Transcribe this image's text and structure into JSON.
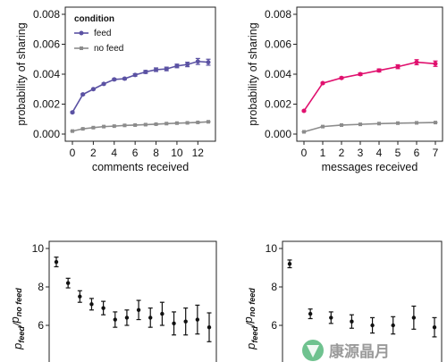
{
  "chart_data": [
    {
      "type": "line",
      "x": [
        0,
        1,
        2,
        3,
        4,
        5,
        6,
        7,
        8,
        9,
        10,
        11,
        12,
        13
      ],
      "xlim": [
        0,
        13
      ],
      "xticks": [
        "0",
        "2",
        "4",
        "6",
        "8",
        "10",
        "12"
      ],
      "ylim": [
        0,
        0.008
      ],
      "yticks": [
        "0.000",
        "0.002",
        "0.004",
        "0.006",
        "0.008"
      ],
      "xlabel": "comments received",
      "ylabel": "probability of sharing",
      "legend": {
        "title": "condition",
        "position": "top-left"
      },
      "series": [
        {
          "name": "feed",
          "color": "#5b52a3",
          "marker": "circle",
          "values": [
            0.00145,
            0.00265,
            0.003,
            0.00335,
            0.00365,
            0.0037,
            0.00395,
            0.00415,
            0.0043,
            0.00435,
            0.00455,
            0.00465,
            0.00485,
            0.0048
          ],
          "error": [
            5e-05,
            5e-05,
            5e-05,
            5e-05,
            6e-05,
            6e-05,
            8e-05,
            0.0001,
            0.00012,
            0.00012,
            0.00012,
            0.00015,
            0.0002,
            0.0002
          ]
        },
        {
          "name": "no feed",
          "color": "#8c8c8c",
          "marker": "square",
          "values": [
            0.0002,
            0.00035,
            0.00043,
            0.0005,
            0.00053,
            0.00058,
            0.0006,
            0.00063,
            0.00066,
            0.0007,
            0.00073,
            0.00075,
            0.00078,
            0.00082
          ],
          "error": [
            1e-05,
            1e-05,
            1e-05,
            1e-05,
            1e-05,
            1e-05,
            1e-05,
            2e-05,
            2e-05,
            2e-05,
            2e-05,
            2e-05,
            2e-05,
            2e-05
          ]
        }
      ]
    },
    {
      "type": "line",
      "x": [
        0,
        1,
        2,
        3,
        4,
        5,
        6,
        7
      ],
      "xlim": [
        0,
        7
      ],
      "xticks": [
        "0",
        "1",
        "2",
        "3",
        "4",
        "5",
        "6",
        "7"
      ],
      "ylim": [
        0,
        0.008
      ],
      "yticks": [
        "0.000",
        "0.002",
        "0.004",
        "0.006",
        "0.008"
      ],
      "xlabel": "messages received",
      "ylabel": "probability of sharing",
      "series": [
        {
          "name": "feed",
          "color": "#e0106e",
          "marker": "circle",
          "values": [
            0.00155,
            0.0034,
            0.00375,
            0.004,
            0.00425,
            0.0045,
            0.0048,
            0.0047
          ],
          "error": [
            4e-05,
            5e-05,
            6e-05,
            8e-05,
            0.0001,
            0.00013,
            0.00017,
            0.00018
          ]
        },
        {
          "name": "no feed",
          "color": "#8c8c8c",
          "marker": "square",
          "values": [
            0.00015,
            0.0005,
            0.0006,
            0.00065,
            0.0007,
            0.00073,
            0.00075,
            0.00077
          ],
          "error": [
            1e-05,
            1e-05,
            1e-05,
            1e-05,
            1e-05,
            1e-05,
            1e-05,
            1e-05
          ]
        }
      ]
    },
    {
      "type": "scatter",
      "x": [
        0,
        1,
        2,
        3,
        4,
        5,
        6,
        7,
        8,
        9,
        10,
        11,
        12,
        13
      ],
      "xlim": [
        0,
        13
      ],
      "ylim": [
        4,
        10
      ],
      "yticks": [
        "6",
        "8",
        "10"
      ],
      "ylabel": "p_feed / p_no feed",
      "series": [
        {
          "color": "#111111",
          "values": [
            9.3,
            8.2,
            7.5,
            7.1,
            6.9,
            6.3,
            6.4,
            6.8,
            6.4,
            6.6,
            6.1,
            6.2,
            6.3,
            5.9
          ],
          "error": [
            0.25,
            0.25,
            0.3,
            0.3,
            0.35,
            0.4,
            0.4,
            0.5,
            0.5,
            0.6,
            0.6,
            0.7,
            0.75,
            0.75
          ]
        }
      ]
    },
    {
      "type": "scatter",
      "x": [
        0,
        1,
        2,
        3,
        4,
        5,
        6,
        7
      ],
      "xlim": [
        0,
        7
      ],
      "ylim": [
        4,
        10
      ],
      "yticks": [
        "6",
        "8",
        "10"
      ],
      "ylabel": "p_feed / p_no feed",
      "series": [
        {
          "color": "#111111",
          "values": [
            9.2,
            6.6,
            6.4,
            6.2,
            6.0,
            6.0,
            6.4,
            5.9
          ],
          "error": [
            0.2,
            0.25,
            0.3,
            0.35,
            0.4,
            0.45,
            0.6,
            0.5
          ]
        }
      ]
    }
  ],
  "labels": {
    "ratio_main_letter": "p",
    "ratio_sub_top": "feed",
    "ratio_slash": "/",
    "ratio_sub_bottom": "no feed"
  },
  "watermark": {
    "text": "康源晶月",
    "color": "#9a9a9a",
    "accent": "#3fae6a"
  }
}
